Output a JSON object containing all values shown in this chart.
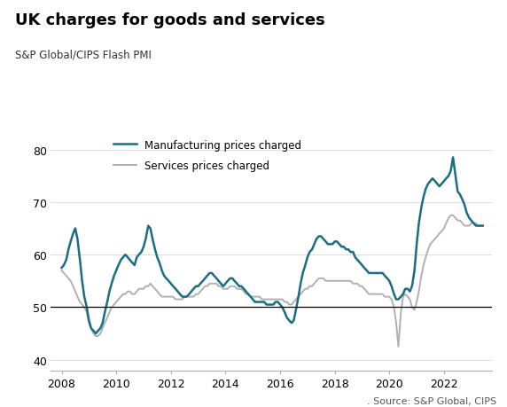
{
  "title": "UK charges for goods and services",
  "subtitle": "S&P Global/CIPS Flash PMI",
  "ylabel_ticks": [
    40,
    50,
    60,
    70,
    80
  ],
  "ylim": [
    38,
    83
  ],
  "xlim_start": 2007.6,
  "xlim_end": 2023.75,
  "xticks": [
    2008,
    2010,
    2012,
    2014,
    2016,
    2018,
    2020,
    2022
  ],
  "line_50_color": "#000000",
  "mfg_color": "#1a6e82",
  "svc_color": "#b0b0b0",
  "mfg_label": "Manufacturing prices charged",
  "svc_label": "Services prices charged",
  "source_text": ". Source: S&P Global, CIPS",
  "background_color": "#ffffff",
  "mfg_data": [
    [
      2008.0,
      57.5
    ],
    [
      2008.08,
      58.0
    ],
    [
      2008.17,
      59.0
    ],
    [
      2008.25,
      61.0
    ],
    [
      2008.33,
      62.5
    ],
    [
      2008.42,
      64.0
    ],
    [
      2008.5,
      65.0
    ],
    [
      2008.58,
      63.0
    ],
    [
      2008.67,
      59.0
    ],
    [
      2008.75,
      55.0
    ],
    [
      2008.83,
      52.0
    ],
    [
      2008.92,
      50.0
    ],
    [
      2009.0,
      47.5
    ],
    [
      2009.08,
      46.0
    ],
    [
      2009.17,
      45.5
    ],
    [
      2009.25,
      45.0
    ],
    [
      2009.33,
      45.5
    ],
    [
      2009.42,
      46.0
    ],
    [
      2009.5,
      47.0
    ],
    [
      2009.58,
      49.0
    ],
    [
      2009.67,
      51.0
    ],
    [
      2009.75,
      53.0
    ],
    [
      2009.83,
      54.5
    ],
    [
      2009.92,
      56.0
    ],
    [
      2010.0,
      57.0
    ],
    [
      2010.08,
      58.0
    ],
    [
      2010.17,
      59.0
    ],
    [
      2010.25,
      59.5
    ],
    [
      2010.33,
      60.0
    ],
    [
      2010.42,
      59.5
    ],
    [
      2010.5,
      59.0
    ],
    [
      2010.58,
      58.5
    ],
    [
      2010.67,
      58.0
    ],
    [
      2010.75,
      59.5
    ],
    [
      2010.83,
      60.0
    ],
    [
      2010.92,
      60.5
    ],
    [
      2011.0,
      61.5
    ],
    [
      2011.08,
      63.0
    ],
    [
      2011.17,
      65.5
    ],
    [
      2011.25,
      65.0
    ],
    [
      2011.33,
      63.0
    ],
    [
      2011.42,
      61.0
    ],
    [
      2011.5,
      59.5
    ],
    [
      2011.58,
      58.5
    ],
    [
      2011.67,
      57.0
    ],
    [
      2011.75,
      56.0
    ],
    [
      2011.83,
      55.5
    ],
    [
      2011.92,
      55.0
    ],
    [
      2012.0,
      54.5
    ],
    [
      2012.08,
      54.0
    ],
    [
      2012.17,
      53.5
    ],
    [
      2012.25,
      53.0
    ],
    [
      2012.33,
      52.5
    ],
    [
      2012.42,
      52.0
    ],
    [
      2012.5,
      52.0
    ],
    [
      2012.58,
      52.0
    ],
    [
      2012.67,
      52.5
    ],
    [
      2012.75,
      53.0
    ],
    [
      2012.83,
      53.5
    ],
    [
      2012.92,
      54.0
    ],
    [
      2013.0,
      54.0
    ],
    [
      2013.08,
      54.5
    ],
    [
      2013.17,
      55.0
    ],
    [
      2013.25,
      55.5
    ],
    [
      2013.33,
      56.0
    ],
    [
      2013.42,
      56.5
    ],
    [
      2013.5,
      56.5
    ],
    [
      2013.58,
      56.0
    ],
    [
      2013.67,
      55.5
    ],
    [
      2013.75,
      55.0
    ],
    [
      2013.83,
      54.5
    ],
    [
      2013.92,
      54.0
    ],
    [
      2014.0,
      54.5
    ],
    [
      2014.08,
      55.0
    ],
    [
      2014.17,
      55.5
    ],
    [
      2014.25,
      55.5
    ],
    [
      2014.33,
      55.0
    ],
    [
      2014.42,
      54.5
    ],
    [
      2014.5,
      54.0
    ],
    [
      2014.58,
      54.0
    ],
    [
      2014.67,
      53.5
    ],
    [
      2014.75,
      53.0
    ],
    [
      2014.83,
      52.5
    ],
    [
      2014.92,
      52.0
    ],
    [
      2015.0,
      51.5
    ],
    [
      2015.08,
      51.0
    ],
    [
      2015.17,
      51.0
    ],
    [
      2015.25,
      51.0
    ],
    [
      2015.33,
      51.0
    ],
    [
      2015.42,
      51.0
    ],
    [
      2015.5,
      50.5
    ],
    [
      2015.58,
      50.5
    ],
    [
      2015.67,
      50.5
    ],
    [
      2015.75,
      50.5
    ],
    [
      2015.83,
      51.0
    ],
    [
      2015.92,
      51.0
    ],
    [
      2016.0,
      50.5
    ],
    [
      2016.08,
      50.0
    ],
    [
      2016.17,
      49.0
    ],
    [
      2016.25,
      48.0
    ],
    [
      2016.33,
      47.5
    ],
    [
      2016.42,
      47.0
    ],
    [
      2016.5,
      47.5
    ],
    [
      2016.58,
      49.5
    ],
    [
      2016.67,
      52.0
    ],
    [
      2016.75,
      54.5
    ],
    [
      2016.83,
      56.5
    ],
    [
      2016.92,
      58.0
    ],
    [
      2017.0,
      59.5
    ],
    [
      2017.08,
      60.5
    ],
    [
      2017.17,
      61.0
    ],
    [
      2017.25,
      62.0
    ],
    [
      2017.33,
      63.0
    ],
    [
      2017.42,
      63.5
    ],
    [
      2017.5,
      63.5
    ],
    [
      2017.58,
      63.0
    ],
    [
      2017.67,
      62.5
    ],
    [
      2017.75,
      62.0
    ],
    [
      2017.83,
      62.0
    ],
    [
      2017.92,
      62.0
    ],
    [
      2018.0,
      62.5
    ],
    [
      2018.08,
      62.5
    ],
    [
      2018.17,
      62.0
    ],
    [
      2018.25,
      61.5
    ],
    [
      2018.33,
      61.5
    ],
    [
      2018.42,
      61.0
    ],
    [
      2018.5,
      61.0
    ],
    [
      2018.58,
      60.5
    ],
    [
      2018.67,
      60.5
    ],
    [
      2018.75,
      59.5
    ],
    [
      2018.83,
      59.0
    ],
    [
      2018.92,
      58.5
    ],
    [
      2019.0,
      58.0
    ],
    [
      2019.08,
      57.5
    ],
    [
      2019.17,
      57.0
    ],
    [
      2019.25,
      56.5
    ],
    [
      2019.33,
      56.5
    ],
    [
      2019.42,
      56.5
    ],
    [
      2019.5,
      56.5
    ],
    [
      2019.58,
      56.5
    ],
    [
      2019.67,
      56.5
    ],
    [
      2019.75,
      56.5
    ],
    [
      2019.83,
      56.0
    ],
    [
      2019.92,
      55.5
    ],
    [
      2020.0,
      55.0
    ],
    [
      2020.08,
      54.0
    ],
    [
      2020.17,
      52.5
    ],
    [
      2020.25,
      51.5
    ],
    [
      2020.33,
      51.5
    ],
    [
      2020.42,
      52.0
    ],
    [
      2020.5,
      52.5
    ],
    [
      2020.58,
      53.5
    ],
    [
      2020.67,
      53.5
    ],
    [
      2020.75,
      53.0
    ],
    [
      2020.83,
      54.0
    ],
    [
      2020.92,
      57.0
    ],
    [
      2021.0,
      62.0
    ],
    [
      2021.08,
      66.0
    ],
    [
      2021.17,
      69.0
    ],
    [
      2021.25,
      71.0
    ],
    [
      2021.33,
      72.5
    ],
    [
      2021.42,
      73.5
    ],
    [
      2021.5,
      74.0
    ],
    [
      2021.58,
      74.5
    ],
    [
      2021.67,
      74.0
    ],
    [
      2021.75,
      73.5
    ],
    [
      2021.83,
      73.0
    ],
    [
      2021.92,
      73.5
    ],
    [
      2022.0,
      74.0
    ],
    [
      2022.08,
      74.5
    ],
    [
      2022.17,
      75.0
    ],
    [
      2022.25,
      76.0
    ],
    [
      2022.33,
      78.5
    ],
    [
      2022.42,
      75.0
    ],
    [
      2022.5,
      72.0
    ],
    [
      2022.58,
      71.5
    ],
    [
      2022.67,
      70.5
    ],
    [
      2022.75,
      69.5
    ],
    [
      2022.83,
      68.0
    ],
    [
      2022.92,
      67.0
    ],
    [
      2023.0,
      66.5
    ],
    [
      2023.08,
      66.0
    ],
    [
      2023.17,
      65.5
    ],
    [
      2023.25,
      65.5
    ],
    [
      2023.33,
      65.5
    ],
    [
      2023.42,
      65.5
    ]
  ],
  "svc_data": [
    [
      2008.0,
      57.0
    ],
    [
      2008.08,
      56.5
    ],
    [
      2008.17,
      56.0
    ],
    [
      2008.25,
      55.5
    ],
    [
      2008.33,
      55.0
    ],
    [
      2008.42,
      54.0
    ],
    [
      2008.5,
      53.0
    ],
    [
      2008.58,
      52.0
    ],
    [
      2008.67,
      51.0
    ],
    [
      2008.75,
      50.5
    ],
    [
      2008.83,
      50.0
    ],
    [
      2008.92,
      49.0
    ],
    [
      2009.0,
      47.0
    ],
    [
      2009.08,
      46.0
    ],
    [
      2009.17,
      45.0
    ],
    [
      2009.25,
      44.5
    ],
    [
      2009.33,
      44.5
    ],
    [
      2009.42,
      45.0
    ],
    [
      2009.5,
      46.0
    ],
    [
      2009.58,
      47.0
    ],
    [
      2009.67,
      48.0
    ],
    [
      2009.75,
      49.0
    ],
    [
      2009.83,
      50.0
    ],
    [
      2009.92,
      50.5
    ],
    [
      2010.0,
      51.0
    ],
    [
      2010.08,
      51.5
    ],
    [
      2010.17,
      52.0
    ],
    [
      2010.25,
      52.5
    ],
    [
      2010.33,
      52.5
    ],
    [
      2010.42,
      53.0
    ],
    [
      2010.5,
      53.0
    ],
    [
      2010.58,
      52.5
    ],
    [
      2010.67,
      52.5
    ],
    [
      2010.75,
      53.0
    ],
    [
      2010.83,
      53.5
    ],
    [
      2010.92,
      53.5
    ],
    [
      2011.0,
      53.5
    ],
    [
      2011.08,
      54.0
    ],
    [
      2011.17,
      54.0
    ],
    [
      2011.25,
      54.5
    ],
    [
      2011.33,
      54.0
    ],
    [
      2011.42,
      53.5
    ],
    [
      2011.5,
      53.0
    ],
    [
      2011.58,
      52.5
    ],
    [
      2011.67,
      52.0
    ],
    [
      2011.75,
      52.0
    ],
    [
      2011.83,
      52.0
    ],
    [
      2011.92,
      52.0
    ],
    [
      2012.0,
      52.0
    ],
    [
      2012.08,
      52.0
    ],
    [
      2012.17,
      51.5
    ],
    [
      2012.25,
      51.5
    ],
    [
      2012.33,
      51.5
    ],
    [
      2012.42,
      51.5
    ],
    [
      2012.5,
      52.0
    ],
    [
      2012.58,
      52.0
    ],
    [
      2012.67,
      52.0
    ],
    [
      2012.75,
      52.0
    ],
    [
      2012.83,
      52.0
    ],
    [
      2012.92,
      52.5
    ],
    [
      2013.0,
      52.5
    ],
    [
      2013.08,
      53.0
    ],
    [
      2013.17,
      53.5
    ],
    [
      2013.25,
      54.0
    ],
    [
      2013.33,
      54.0
    ],
    [
      2013.42,
      54.5
    ],
    [
      2013.5,
      54.5
    ],
    [
      2013.58,
      54.5
    ],
    [
      2013.67,
      54.5
    ],
    [
      2013.75,
      54.0
    ],
    [
      2013.83,
      54.0
    ],
    [
      2013.92,
      53.5
    ],
    [
      2014.0,
      53.5
    ],
    [
      2014.08,
      53.5
    ],
    [
      2014.17,
      54.0
    ],
    [
      2014.25,
      54.0
    ],
    [
      2014.33,
      54.0
    ],
    [
      2014.42,
      53.5
    ],
    [
      2014.5,
      53.5
    ],
    [
      2014.58,
      53.5
    ],
    [
      2014.67,
      53.0
    ],
    [
      2014.75,
      52.5
    ],
    [
      2014.83,
      52.5
    ],
    [
      2014.92,
      52.0
    ],
    [
      2015.0,
      52.0
    ],
    [
      2015.08,
      52.0
    ],
    [
      2015.17,
      52.0
    ],
    [
      2015.25,
      52.0
    ],
    [
      2015.33,
      51.5
    ],
    [
      2015.42,
      51.5
    ],
    [
      2015.5,
      51.5
    ],
    [
      2015.58,
      51.5
    ],
    [
      2015.67,
      51.5
    ],
    [
      2015.75,
      51.5
    ],
    [
      2015.83,
      51.5
    ],
    [
      2015.92,
      51.5
    ],
    [
      2016.0,
      51.5
    ],
    [
      2016.08,
      51.5
    ],
    [
      2016.17,
      51.0
    ],
    [
      2016.25,
      51.0
    ],
    [
      2016.33,
      50.5
    ],
    [
      2016.42,
      50.5
    ],
    [
      2016.5,
      51.0
    ],
    [
      2016.58,
      51.5
    ],
    [
      2016.67,
      52.0
    ],
    [
      2016.75,
      52.5
    ],
    [
      2016.83,
      53.0
    ],
    [
      2016.92,
      53.5
    ],
    [
      2017.0,
      53.5
    ],
    [
      2017.08,
      54.0
    ],
    [
      2017.17,
      54.0
    ],
    [
      2017.25,
      54.5
    ],
    [
      2017.33,
      55.0
    ],
    [
      2017.42,
      55.5
    ],
    [
      2017.5,
      55.5
    ],
    [
      2017.58,
      55.5
    ],
    [
      2017.67,
      55.0
    ],
    [
      2017.75,
      55.0
    ],
    [
      2017.83,
      55.0
    ],
    [
      2017.92,
      55.0
    ],
    [
      2018.0,
      55.0
    ],
    [
      2018.08,
      55.0
    ],
    [
      2018.17,
      55.0
    ],
    [
      2018.25,
      55.0
    ],
    [
      2018.33,
      55.0
    ],
    [
      2018.42,
      55.0
    ],
    [
      2018.5,
      55.0
    ],
    [
      2018.58,
      55.0
    ],
    [
      2018.67,
      54.5
    ],
    [
      2018.75,
      54.5
    ],
    [
      2018.83,
      54.5
    ],
    [
      2018.92,
      54.0
    ],
    [
      2019.0,
      54.0
    ],
    [
      2019.08,
      53.5
    ],
    [
      2019.17,
      53.0
    ],
    [
      2019.25,
      52.5
    ],
    [
      2019.33,
      52.5
    ],
    [
      2019.42,
      52.5
    ],
    [
      2019.5,
      52.5
    ],
    [
      2019.58,
      52.5
    ],
    [
      2019.67,
      52.5
    ],
    [
      2019.75,
      52.5
    ],
    [
      2019.83,
      52.0
    ],
    [
      2019.92,
      52.0
    ],
    [
      2020.0,
      52.0
    ],
    [
      2020.08,
      51.5
    ],
    [
      2020.17,
      50.0
    ],
    [
      2020.25,
      47.0
    ],
    [
      2020.33,
      42.5
    ],
    [
      2020.42,
      49.0
    ],
    [
      2020.5,
      52.0
    ],
    [
      2020.58,
      52.5
    ],
    [
      2020.67,
      52.0
    ],
    [
      2020.75,
      51.5
    ],
    [
      2020.83,
      50.0
    ],
    [
      2020.92,
      49.5
    ],
    [
      2021.0,
      51.0
    ],
    [
      2021.08,
      53.0
    ],
    [
      2021.17,
      56.0
    ],
    [
      2021.25,
      58.0
    ],
    [
      2021.33,
      59.5
    ],
    [
      2021.42,
      61.0
    ],
    [
      2021.5,
      62.0
    ],
    [
      2021.58,
      62.5
    ],
    [
      2021.67,
      63.0
    ],
    [
      2021.75,
      63.5
    ],
    [
      2021.83,
      64.0
    ],
    [
      2021.92,
      64.5
    ],
    [
      2022.0,
      65.0
    ],
    [
      2022.08,
      66.0
    ],
    [
      2022.17,
      67.0
    ],
    [
      2022.25,
      67.5
    ],
    [
      2022.33,
      67.5
    ],
    [
      2022.42,
      67.0
    ],
    [
      2022.5,
      66.5
    ],
    [
      2022.58,
      66.5
    ],
    [
      2022.67,
      66.0
    ],
    [
      2022.75,
      65.5
    ],
    [
      2022.83,
      65.5
    ],
    [
      2022.92,
      65.5
    ],
    [
      2023.0,
      66.0
    ],
    [
      2023.08,
      66.0
    ],
    [
      2023.17,
      66.0
    ],
    [
      2023.25,
      65.5
    ],
    [
      2023.33,
      65.5
    ],
    [
      2023.42,
      65.5
    ]
  ]
}
